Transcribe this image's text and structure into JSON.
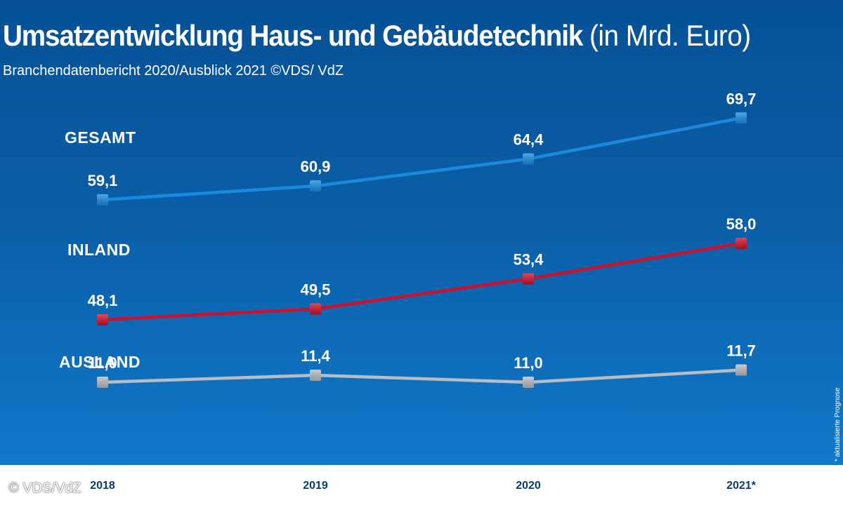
{
  "header": {
    "title_bold": "Umsatzentwicklung Haus- und Gebäudetechnik",
    "title_unit": "(in Mrd. Euro)",
    "subtitle": "Branchendatenbericht 2020/Ausblick 2021 ©VDS/ VdZ"
  },
  "chart_data": {
    "type": "line",
    "title": "Umsatzentwicklung Haus- und Gebäudetechnik (in Mrd. Euro)",
    "subtitle": "Branchendatenbericht 2020/Ausblick 2021 ©VDS/ VdZ",
    "categories": [
      "2018",
      "2019",
      "2020",
      "2021*"
    ],
    "xlabel": "",
    "ylabel": "Mrd. Euro",
    "grid": false,
    "series": [
      {
        "name": "GESAMT",
        "color": "#1a8ae0",
        "values": [
          59.1,
          60.9,
          64.4,
          69.7
        ],
        "labels": [
          "59,1",
          "60,9",
          "64,4",
          "69,7"
        ]
      },
      {
        "name": "INLAND",
        "color": "#d0102b",
        "values": [
          48.1,
          49.5,
          53.4,
          58.0
        ],
        "labels": [
          "48,1",
          "49,5",
          "53,4",
          "58,0"
        ]
      },
      {
        "name": "AUSLAND",
        "color": "#b9bcc1",
        "values": [
          11.0,
          11.4,
          11.0,
          11.7
        ],
        "labels": [
          "11,0",
          "11,4",
          "11,0",
          "11,7"
        ]
      }
    ],
    "footnote": "* aktualisierte Prognose"
  },
  "copyright": "© VDS/VdZ"
}
